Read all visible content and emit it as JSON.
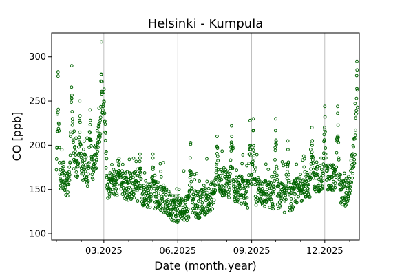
{
  "chart_data": {
    "type": "scatter",
    "title": "Helsinki - Kumpula",
    "xlabel": "Date (month.year)",
    "ylabel": "CO [ppb]",
    "x_start": "2025-01-01",
    "x_end": "2026-01-11",
    "xlim": [
      "2024-12-26",
      "2026-01-13"
    ],
    "ylim": [
      93,
      327
    ],
    "yticks": [
      100,
      150,
      200,
      250,
      300
    ],
    "xticks": [
      {
        "date": "2025-03-01",
        "label": "03.2025"
      },
      {
        "date": "2025-06-01",
        "label": "06.2025"
      },
      {
        "date": "2025-09-01",
        "label": "09.2025"
      },
      {
        "date": "2025-12-01",
        "label": "12.2025"
      }
    ],
    "minor_xticks": [
      "2025-01-01",
      "2025-02-01",
      "2025-04-01",
      "2025-05-01",
      "2025-07-01",
      "2025-08-01",
      "2025-10-01",
      "2025-11-01",
      "2026-01-01"
    ],
    "grid": "vertical major only",
    "marker": "hollow circle",
    "series_color": "#006400",
    "series": [
      {
        "values_sampled_daily_base": [
          [
            "2025-01-01",
            150
          ],
          [
            "2025-01-08",
            165
          ],
          [
            "2025-01-15",
            150
          ],
          [
            "2025-01-22",
            185
          ],
          [
            "2025-01-29",
            160
          ],
          [
            "2025-02-05",
            170
          ],
          [
            "2025-02-12",
            160
          ],
          [
            "2025-02-19",
            185
          ],
          [
            "2025-02-26",
            170
          ],
          [
            "2025-03-01",
            250
          ],
          [
            "2025-03-05",
            150
          ],
          [
            "2025-03-12",
            148
          ],
          [
            "2025-03-19",
            155
          ],
          [
            "2025-03-26",
            150
          ],
          [
            "2025-04-02",
            148
          ],
          [
            "2025-04-09",
            150
          ],
          [
            "2025-04-16",
            145
          ],
          [
            "2025-04-23",
            140
          ],
          [
            "2025-04-30",
            138
          ],
          [
            "2025-05-07",
            140
          ],
          [
            "2025-05-14",
            135
          ],
          [
            "2025-05-21",
            128
          ],
          [
            "2025-05-28",
            125
          ],
          [
            "2025-06-04",
            122
          ],
          [
            "2025-06-11",
            125
          ],
          [
            "2025-06-18",
            130
          ],
          [
            "2025-06-25",
            128
          ],
          [
            "2025-07-02",
            130
          ],
          [
            "2025-07-09",
            135
          ],
          [
            "2025-07-16",
            140
          ],
          [
            "2025-07-23",
            150
          ],
          [
            "2025-07-30",
            155
          ],
          [
            "2025-08-06",
            150
          ],
          [
            "2025-08-13",
            145
          ],
          [
            "2025-08-20",
            145
          ],
          [
            "2025-08-27",
            140
          ],
          [
            "2025-09-03",
            140
          ],
          [
            "2025-09-10",
            145
          ],
          [
            "2025-09-17",
            140
          ],
          [
            "2025-09-24",
            138
          ],
          [
            "2025-10-01",
            135
          ],
          [
            "2025-10-08",
            140
          ],
          [
            "2025-10-15",
            130
          ],
          [
            "2025-10-22",
            135
          ],
          [
            "2025-10-29",
            145
          ],
          [
            "2025-11-05",
            150
          ],
          [
            "2025-11-12",
            150
          ],
          [
            "2025-11-19",
            155
          ],
          [
            "2025-11-26",
            160
          ],
          [
            "2025-12-03",
            155
          ],
          [
            "2025-12-10",
            160
          ],
          [
            "2025-12-17",
            150
          ],
          [
            "2025-12-24",
            140
          ],
          [
            "2025-12-31",
            145
          ],
          [
            "2026-01-07",
            190
          ],
          [
            "2026-01-11",
            200
          ]
        ],
        "peaks": [
          [
            "2025-01-03",
            283
          ],
          [
            "2025-01-20",
            290
          ],
          [
            "2025-01-30",
            250
          ],
          [
            "2025-02-12",
            240
          ],
          [
            "2025-02-23",
            242
          ],
          [
            "2025-02-26",
            317
          ],
          [
            "2025-03-20",
            185
          ],
          [
            "2025-04-15",
            190
          ],
          [
            "2025-05-01",
            190
          ],
          [
            "2025-06-17",
            203
          ],
          [
            "2025-07-20",
            210
          ],
          [
            "2025-08-07",
            222
          ],
          [
            "2025-08-30",
            228
          ],
          [
            "2025-09-03",
            230
          ],
          [
            "2025-10-01",
            230
          ],
          [
            "2025-10-16",
            205
          ],
          [
            "2025-11-15",
            220
          ],
          [
            "2025-12-01",
            244
          ],
          [
            "2025-12-17",
            244
          ],
          [
            "2026-01-10",
            295
          ]
        ]
      }
    ]
  }
}
